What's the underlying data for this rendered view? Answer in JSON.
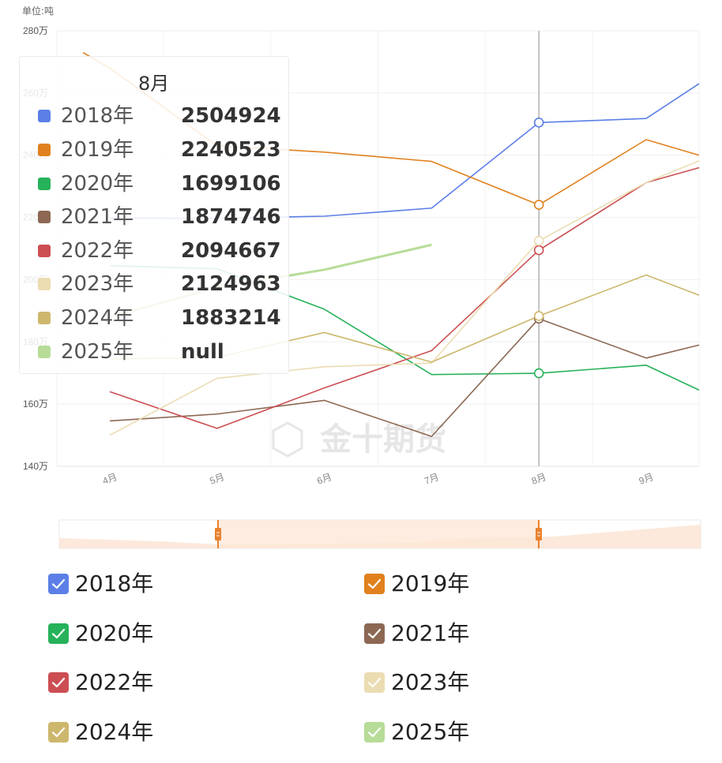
{
  "unit_label": "单位:吨",
  "watermark": "金十期货",
  "tooltip": {
    "title": "8月",
    "rows": [
      {
        "name": "2018年",
        "value": "2504924",
        "color": "#5b7fe6"
      },
      {
        "name": "2019年",
        "value": "2240523",
        "color": "#e0811e"
      },
      {
        "name": "2020年",
        "value": "1699106",
        "color": "#26b25a"
      },
      {
        "name": "2021年",
        "value": "1874746",
        "color": "#8c6853"
      },
      {
        "name": "2022年",
        "value": "2094667",
        "color": "#cc4e53"
      },
      {
        "name": "2023年",
        "value": "2124963",
        "color": "#ebdcb2"
      },
      {
        "name": "2024年",
        "value": "1883214",
        "color": "#cdb76c"
      },
      {
        "name": "2025年",
        "value": "null",
        "color": "#b7dc98"
      }
    ]
  },
  "legend": [
    {
      "label": "2018年",
      "color": "#5b7fe6",
      "checked": true
    },
    {
      "label": "2019年",
      "color": "#e0811e",
      "checked": true
    },
    {
      "label": "2020年",
      "color": "#26b25a",
      "checked": true
    },
    {
      "label": "2021年",
      "color": "#8c6853",
      "checked": true
    },
    {
      "label": "2022年",
      "color": "#cc4e53",
      "checked": true
    },
    {
      "label": "2023年",
      "color": "#ebdcb2",
      "checked": true
    },
    {
      "label": "2024年",
      "color": "#cdb76c",
      "checked": true
    },
    {
      "label": "2025年",
      "color": "#b7dc98",
      "checked": true
    }
  ],
  "chart_data": {
    "type": "line",
    "categories": [
      "4月",
      "5月",
      "6月",
      "7月",
      "8月",
      "9月"
    ],
    "y_ticks": [
      "140万",
      "160万",
      "180万",
      "200万",
      "220万",
      "240万",
      "260万",
      "280万"
    ],
    "ylim": [
      1400000,
      2800000
    ],
    "ylabel": "单位:吨",
    "highlight_category": "8月",
    "series": [
      {
        "name": "2018年",
        "color": "#5b7fe6",
        "values": [
          2198000,
          2197000,
          2204000,
          2230000,
          2504924,
          2518000
        ],
        "end": [
          1.0,
          2630000
        ]
      },
      {
        "name": "2019年",
        "color": "#e0811e",
        "values": [
          2680000,
          2430000,
          2410000,
          2380000,
          2240523,
          2450000
        ],
        "end": [
          1.0,
          2400000
        ],
        "start": [
          -0.5,
          2730000
        ]
      },
      {
        "name": "2020年",
        "color": "#26b25a",
        "values": [
          2045000,
          2035000,
          1905000,
          1695000,
          1699106,
          1725000
        ],
        "end": [
          1.0,
          1645000
        ]
      },
      {
        "name": "2021年",
        "color": "#8c6853",
        "values": [
          1546000,
          1568000,
          1612000,
          1496000,
          1874746,
          1748000
        ],
        "end": [
          1.0,
          1790000
        ]
      },
      {
        "name": "2022年",
        "color": "#cc4e53",
        "values": [
          1640000,
          1522000,
          1652000,
          1772000,
          2094667,
          2312000
        ],
        "end": [
          1.0,
          2360000
        ]
      },
      {
        "name": "2023年",
        "color": "#ebdcb2",
        "values": [
          1500000,
          1683000,
          1720000,
          1732000,
          2124963,
          2312000
        ],
        "end": [
          1.0,
          2382000
        ]
      },
      {
        "name": "2024年",
        "color": "#cdb76c",
        "values": [
          1745000,
          1750000,
          1830000,
          1735000,
          1883214,
          2015000
        ],
        "end": [
          1.0,
          1950000
        ]
      },
      {
        "name": "2025年",
        "color": "#b7dc98",
        "values": [
          1880000,
          1975000,
          2032000,
          2112000,
          null,
          null
        ],
        "bold": true
      }
    ]
  }
}
